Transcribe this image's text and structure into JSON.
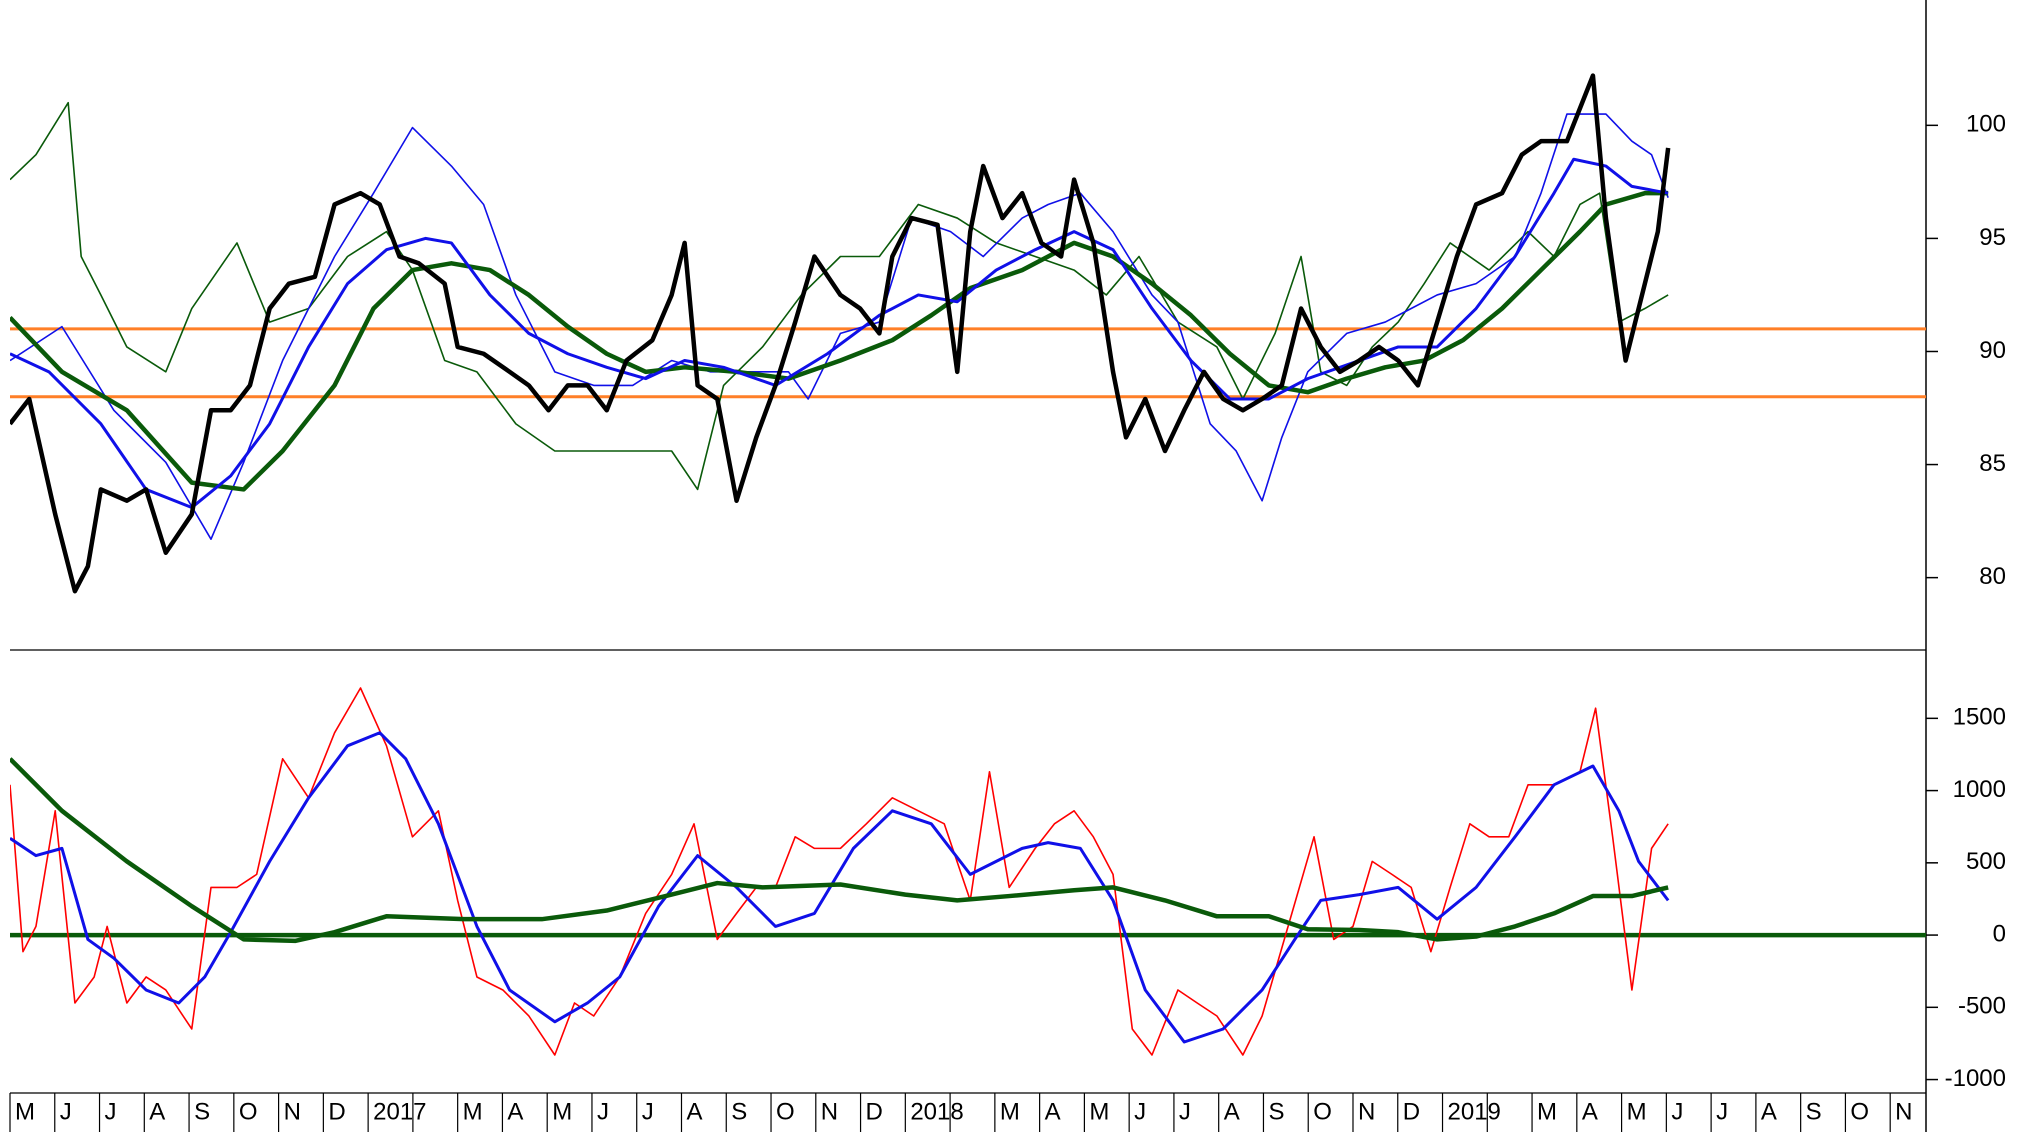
{
  "chart_data": [
    {
      "type": "line",
      "xlim": [
        0,
        42.8
      ],
      "ylim": [
        76.8,
        105.1
      ],
      "yticks": [
        80,
        85,
        90,
        95,
        100
      ],
      "hlines": [
        {
          "value": 91,
          "color": "#ff7f27"
        },
        {
          "value": 88,
          "color": "#ff7f27"
        }
      ],
      "series": [
        {
          "color": "#0a5a0a",
          "width": 1.6,
          "x": [
            0,
            0.58,
            1.3,
            1.59,
            2.03,
            2.61,
            3.48,
            4.06,
            5.07,
            5.8,
            6.67,
            7.54,
            8.41,
            8.99,
            9.71,
            10.43,
            11.3,
            12.17,
            13.04,
            13.91,
            14.78,
            15.36,
            15.94,
            16.81,
            17.68,
            18.55,
            19.42,
            20.29,
            21.16,
            22.03,
            22.9,
            23.77,
            24.49,
            25.22,
            26.09,
            26.96,
            27.54,
            28.26,
            28.84,
            29.28,
            29.86,
            30.43,
            31.01,
            31.59,
            32.17,
            33.04,
            33.91,
            34.49,
            35.07,
            35.51,
            35.94,
            36.52,
            37.04
          ],
          "values": [
            97.6,
            98.7,
            101.0,
            94.2,
            92.5,
            90.2,
            89.1,
            91.9,
            94.8,
            91.3,
            91.9,
            94.2,
            95.3,
            93.6,
            89.6,
            89.1,
            86.8,
            85.6,
            85.6,
            85.6,
            85.6,
            83.9,
            88.5,
            90.2,
            92.5,
            94.2,
            94.2,
            96.5,
            95.9,
            94.8,
            94.2,
            93.6,
            92.5,
            94.2,
            91.3,
            90.2,
            87.9,
            90.8,
            94.2,
            89.1,
            88.5,
            90.2,
            91.3,
            93.0,
            94.8,
            93.6,
            95.3,
            94.2,
            96.5,
            97.0,
            91.3,
            91.9,
            92.5
          ]
        },
        {
          "color": "#1010e8",
          "width": 1.6,
          "x": [
            0,
            1.16,
            2.32,
            3.48,
            4.49,
            5.22,
            6.09,
            7.25,
            8.12,
            8.99,
            9.86,
            10.58,
            11.3,
            12.17,
            13.04,
            13.91,
            14.78,
            15.65,
            16.52,
            17.39,
            17.83,
            18.55,
            19.42,
            20.14,
            21.01,
            21.74,
            22.61,
            23.19,
            23.91,
            24.64,
            25.51,
            26.09,
            26.81,
            27.39,
            27.97,
            28.41,
            28.99,
            29.86,
            30.72,
            31.3,
            31.88,
            32.75,
            33.62,
            34.2,
            34.78,
            35.65,
            36.23,
            36.67,
            37.04
          ],
          "values": [
            89.6,
            91.1,
            87.4,
            85.1,
            81.7,
            85.1,
            89.6,
            94.2,
            97.0,
            99.9,
            98.2,
            96.5,
            92.5,
            89.1,
            88.5,
            88.5,
            89.6,
            89.1,
            89.1,
            89.1,
            87.9,
            90.8,
            91.3,
            95.9,
            95.3,
            94.2,
            95.9,
            96.5,
            97.0,
            95.3,
            92.5,
            91.3,
            86.8,
            85.6,
            83.4,
            86.2,
            89.1,
            90.8,
            91.3,
            91.9,
            92.5,
            93.0,
            94.2,
            97.0,
            100.5,
            100.5,
            99.3,
            98.7,
            96.8
          ]
        },
        {
          "color": "#0a5a0a",
          "width": 4.5,
          "x": [
            0,
            1.16,
            2.61,
            4.06,
            5.22,
            6.09,
            7.25,
            8.12,
            8.99,
            9.86,
            10.72,
            11.59,
            12.46,
            13.33,
            14.2,
            15.07,
            16.23,
            17.39,
            18.55,
            19.71,
            20.58,
            21.45,
            22.61,
            23.77,
            24.64,
            25.51,
            26.38,
            27.25,
            28.12,
            28.99,
            29.86,
            30.72,
            31.59,
            32.46,
            33.33,
            34.2,
            35.07,
            35.65,
            36.52,
            37.04
          ],
          "values": [
            91.5,
            89.1,
            87.4,
            84.2,
            83.9,
            85.6,
            88.5,
            91.9,
            93.6,
            93.9,
            93.6,
            92.5,
            91.1,
            89.9,
            89.1,
            89.3,
            89.1,
            88.8,
            89.6,
            90.5,
            91.6,
            92.8,
            93.6,
            94.8,
            94.2,
            93.0,
            91.6,
            89.9,
            88.5,
            88.2,
            88.8,
            89.3,
            89.6,
            90.5,
            91.9,
            93.6,
            95.3,
            96.5,
            97.0,
            97.0
          ]
        },
        {
          "color": "#1010e8",
          "width": 3,
          "x": [
            0,
            0.87,
            2.03,
            3.04,
            4.06,
            4.93,
            5.8,
            6.67,
            7.54,
            8.41,
            9.28,
            9.86,
            10.72,
            11.59,
            12.46,
            13.33,
            14.2,
            15.07,
            15.94,
            17.1,
            18.26,
            19.42,
            20.29,
            21.16,
            22.03,
            22.9,
            23.77,
            24.64,
            25.51,
            26.38,
            27.25,
            28.12,
            28.99,
            30.14,
            31.01,
            31.88,
            32.75,
            33.62,
            34.49,
            34.93,
            35.65,
            36.23,
            37.04
          ],
          "values": [
            89.9,
            89.1,
            86.8,
            83.9,
            83.1,
            84.5,
            86.8,
            90.2,
            93.0,
            94.5,
            95.0,
            94.8,
            92.5,
            90.8,
            89.9,
            89.3,
            88.8,
            89.6,
            89.3,
            88.5,
            89.9,
            91.6,
            92.5,
            92.2,
            93.6,
            94.5,
            95.3,
            94.5,
            91.9,
            89.6,
            87.9,
            87.9,
            88.8,
            89.6,
            90.2,
            90.2,
            91.9,
            94.2,
            97.0,
            98.5,
            98.2,
            97.3,
            97.0
          ]
        },
        {
          "color": "#000000",
          "width": 4.5,
          "x": [
            0,
            0.43,
            1.01,
            1.45,
            1.74,
            2.03,
            2.61,
            3.04,
            3.48,
            4.06,
            4.49,
            4.93,
            5.36,
            5.8,
            6.23,
            6.81,
            7.25,
            7.83,
            8.26,
            8.7,
            9.13,
            9.71,
            10.0,
            10.58,
            11.16,
            11.59,
            12.03,
            12.46,
            12.9,
            13.33,
            13.77,
            14.35,
            14.78,
            15.07,
            15.36,
            15.8,
            16.23,
            16.67,
            17.1,
            17.54,
            17.97,
            18.55,
            18.99,
            19.42,
            19.71,
            20.14,
            20.72,
            21.16,
            21.45,
            21.74,
            22.17,
            22.61,
            23.04,
            23.48,
            23.77,
            24.2,
            24.64,
            24.93,
            25.36,
            25.8,
            26.23,
            26.67,
            27.1,
            27.54,
            27.97,
            28.41,
            28.84,
            29.28,
            29.71,
            30.14,
            30.58,
            31.01,
            31.45,
            31.88,
            32.32,
            32.75,
            33.33,
            33.77,
            34.2,
            34.78,
            35.36,
            35.65,
            36.09,
            36.52,
            36.81,
            37.04
          ],
          "values": [
            86.8,
            87.9,
            82.8,
            79.4,
            80.5,
            83.9,
            83.4,
            83.9,
            81.1,
            82.8,
            87.4,
            87.4,
            88.5,
            91.9,
            93.0,
            93.3,
            96.5,
            97.0,
            96.5,
            94.2,
            93.9,
            93.0,
            90.2,
            89.9,
            89.1,
            88.5,
            87.4,
            88.5,
            88.5,
            87.4,
            89.6,
            90.5,
            92.5,
            94.8,
            88.5,
            87.9,
            83.4,
            86.2,
            88.5,
            91.3,
            94.2,
            92.5,
            91.9,
            90.8,
            94.2,
            95.9,
            95.6,
            89.1,
            95.3,
            98.2,
            95.9,
            97.0,
            94.8,
            94.2,
            97.6,
            94.8,
            89.1,
            86.2,
            87.9,
            85.6,
            87.4,
            89.1,
            87.9,
            87.4,
            87.9,
            88.5,
            91.9,
            90.2,
            89.1,
            89.6,
            90.2,
            89.6,
            88.5,
            91.3,
            94.2,
            96.5,
            97.0,
            98.7,
            99.3,
            99.3,
            102.2,
            95.9,
            89.6,
            93.0,
            95.3,
            99.0
          ]
        }
      ]
    },
    {
      "type": "line",
      "xlim": [
        0,
        42.8
      ],
      "ylim": [
        -1093,
        1973
      ],
      "yticks": [
        -1000,
        -500,
        0,
        500,
        1000,
        1500
      ],
      "categories": [
        "M",
        "J",
        "J",
        "A",
        "S",
        "O",
        "N",
        "D",
        "2017",
        null,
        "M",
        "A",
        "M",
        "J",
        "J",
        "A",
        "S",
        "O",
        "N",
        "D",
        "2018",
        null,
        "M",
        "A",
        "M",
        "J",
        "J",
        "A",
        "S",
        "O",
        "N",
        "D",
        "2019",
        null,
        "M",
        "A",
        "M",
        "J",
        "J",
        "A",
        "S",
        "O",
        "N"
      ],
      "hlines": [
        {
          "value": 0,
          "color": "#0a5a0a",
          "width": 4.5
        }
      ],
      "series": [
        {
          "color": "#ff0000",
          "width": 1.6,
          "x": [
            0,
            0.29,
            0.58,
            1.01,
            1.45,
            1.88,
            2.17,
            2.61,
            3.04,
            3.48,
            4.06,
            4.49,
            5.07,
            5.51,
            6.09,
            6.67,
            7.25,
            7.83,
            8.41,
            8.99,
            9.57,
            10.0,
            10.43,
            11.01,
            11.59,
            12.17,
            12.61,
            13.04,
            13.62,
            14.2,
            14.78,
            15.28,
            15.8,
            16.23,
            16.67,
            17.1,
            17.54,
            17.97,
            18.55,
            19.13,
            19.71,
            20.29,
            20.87,
            21.45,
            21.88,
            22.32,
            22.9,
            23.33,
            23.77,
            24.2,
            24.64,
            25.07,
            25.51,
            26.09,
            26.52,
            26.96,
            27.54,
            27.97,
            28.55,
            29.13,
            29.57,
            30.0,
            30.43,
            30.87,
            31.3,
            31.74,
            32.17,
            32.61,
            33.04,
            33.48,
            33.91,
            34.49,
            35.07,
            35.42,
            35.8,
            36.23,
            36.67,
            37.04
          ],
          "values": [
            1040,
            -115,
            60,
            860,
            -470,
            -290,
            60,
            -470,
            -290,
            -380,
            -650,
            330,
            330,
            420,
            1220,
            950,
            1400,
            1710,
            1310,
            680,
            860,
            240,
            -290,
            -380,
            -560,
            -830,
            -470,
            -560,
            -290,
            150,
            420,
            770,
            -30,
            150,
            330,
            330,
            680,
            600,
            600,
            770,
            950,
            860,
            770,
            240,
            1130,
            330,
            600,
            770,
            860,
            680,
            420,
            -650,
            -830,
            -380,
            -470,
            -560,
            -830,
            -560,
            60,
            680,
            -30,
            60,
            510,
            420,
            330,
            -115,
            330,
            770,
            680,
            680,
            1040,
            1040,
            1130,
            1570,
            680,
            -380,
            600,
            770
          ]
        },
        {
          "color": "#1010e8",
          "width": 3,
          "x": [
            0,
            0.58,
            1.16,
            1.74,
            2.32,
            3.04,
            3.77,
            4.35,
            4.93,
            5.8,
            6.67,
            7.54,
            8.26,
            8.84,
            9.57,
            10.43,
            11.16,
            12.17,
            12.9,
            13.62,
            14.49,
            15.36,
            16.23,
            17.1,
            17.97,
            18.84,
            19.71,
            20.58,
            21.45,
            22.03,
            22.61,
            23.19,
            23.91,
            24.64,
            25.36,
            26.23,
            27.1,
            27.97,
            28.7,
            29.28,
            30.14,
            31.01,
            31.88,
            32.75,
            33.62,
            34.49,
            35.36,
            35.94,
            36.38,
            37.04
          ],
          "values": [
            670,
            550,
            600,
            -30,
            -160,
            -380,
            -470,
            -290,
            20,
            510,
            950,
            1310,
            1400,
            1220,
            770,
            60,
            -380,
            -600,
            -470,
            -290,
            200,
            550,
            330,
            60,
            150,
            600,
            860,
            770,
            420,
            510,
            600,
            640,
            600,
            240,
            -380,
            -740,
            -650,
            -380,
            -30,
            240,
            280,
            330,
            110,
            330,
            680,
            1040,
            1170,
            860,
            510,
            240
          ]
        },
        {
          "color": "#0a5a0a",
          "width": 4.5,
          "x": [
            0,
            1.16,
            2.61,
            4.06,
            5.22,
            6.38,
            7.25,
            8.41,
            10.14,
            11.88,
            13.33,
            14.78,
            15.8,
            16.81,
            18.55,
            20.0,
            21.16,
            22.32,
            23.77,
            24.64,
            25.8,
            26.96,
            28.12,
            28.99,
            30.14,
            31.01,
            31.88,
            32.75,
            33.62,
            34.49,
            35.36,
            36.23,
            37.04
          ],
          "values": [
            1220,
            860,
            510,
            200,
            -30,
            -40,
            20,
            130,
            110,
            110,
            170,
            280,
            360,
            330,
            350,
            280,
            240,
            270,
            310,
            330,
            240,
            130,
            130,
            40,
            35,
            20,
            -30,
            -10,
            60,
            150,
            270,
            270,
            330
          ]
        }
      ]
    }
  ]
}
